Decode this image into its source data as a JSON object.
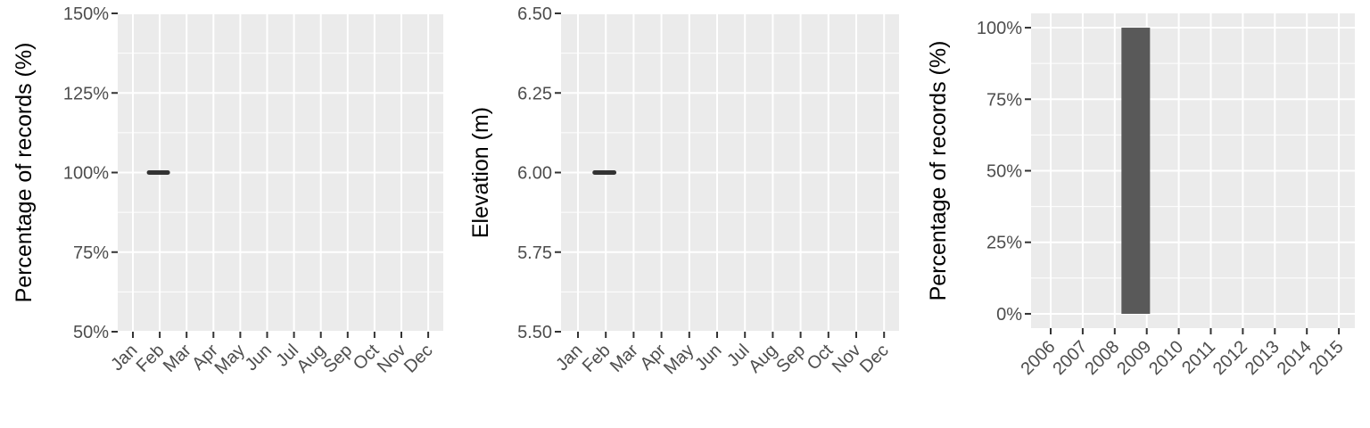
{
  "chart_data": [
    {
      "type": "line",
      "xlabel": "",
      "ylabel": "Percentage of records (%)",
      "categories": [
        "Jan",
        "Feb",
        "Mar",
        "Apr",
        "May",
        "Jun",
        "Jul",
        "Aug",
        "Sep",
        "Oct",
        "Nov",
        "Dec"
      ],
      "ylim": [
        50,
        150
      ],
      "yticks": [
        "50%",
        "75%",
        "100%",
        "125%",
        "150%"
      ],
      "tick_values": [
        50,
        75,
        100,
        125,
        150
      ],
      "segments": [
        {
          "from": "Jan",
          "to": "Feb",
          "value": 100
        }
      ],
      "grid": true,
      "colors": {
        "panel": "#ebebeb",
        "grid": "#ffffff",
        "mark": "#333333"
      }
    },
    {
      "type": "line",
      "xlabel": "",
      "ylabel": "Elevation (m)",
      "categories": [
        "Jan",
        "Feb",
        "Mar",
        "Apr",
        "May",
        "Jun",
        "Jul",
        "Aug",
        "Sep",
        "Oct",
        "Nov",
        "Dec"
      ],
      "ylim": [
        5.5,
        6.5
      ],
      "yticks": [
        "5.50",
        "5.75",
        "6.00",
        "6.25",
        "6.50"
      ],
      "tick_values": [
        5.5,
        5.75,
        6.0,
        6.25,
        6.5
      ],
      "segments": [
        {
          "from": "Jan",
          "to": "Feb",
          "value": 6.0
        }
      ],
      "grid": true,
      "colors": {
        "panel": "#ebebeb",
        "grid": "#ffffff",
        "mark": "#333333"
      }
    },
    {
      "type": "bar",
      "xlabel": "",
      "ylabel": "Percentage of records (%)",
      "categories": [
        "2006",
        "2007",
        "2008",
        "2009",
        "2010",
        "2011",
        "2012",
        "2013",
        "2014",
        "2015"
      ],
      "values": [
        0,
        0,
        100,
        0,
        0,
        0,
        0,
        0,
        0,
        0
      ],
      "ylim": [
        -5,
        105
      ],
      "yticks": [
        "0%",
        "25%",
        "50%",
        "75%",
        "100%"
      ],
      "tick_values": [
        0,
        25,
        50,
        75,
        100
      ],
      "grid": true,
      "colors": {
        "panel": "#ebebeb",
        "grid": "#ffffff",
        "bar": "#595959"
      }
    }
  ]
}
